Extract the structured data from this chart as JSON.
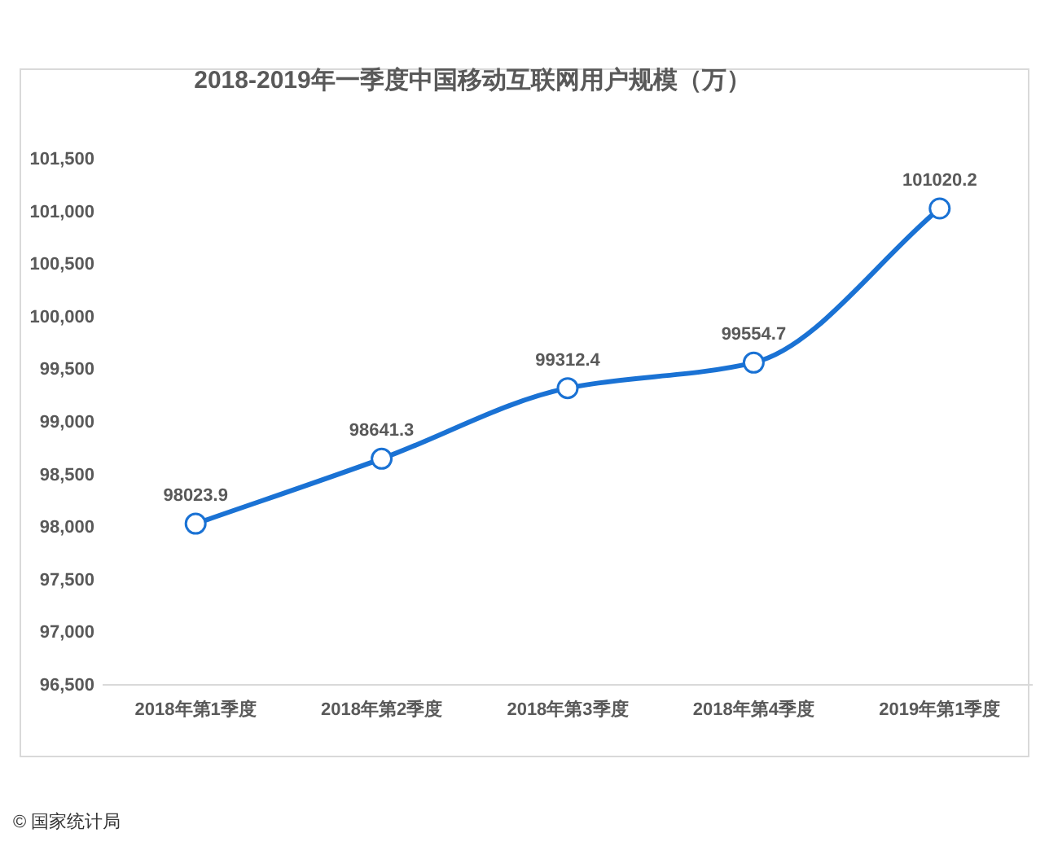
{
  "chart_data": {
    "type": "line",
    "title": "2018-2019年一季度中国移动互联网用户规模（万）",
    "categories": [
      "2018年第1季度",
      "2018年第2季度",
      "2018年第3季度",
      "2018年第4季度",
      "2019年第1季度"
    ],
    "series": [
      {
        "color": "#1a72d4",
        "values": [
          98023.9,
          98641.3,
          99312.4,
          99554.7,
          101020.2
        ]
      }
    ],
    "ylim": [
      96500,
      101500
    ],
    "yticks": [
      {
        "value": 96500,
        "label": "96,500"
      },
      {
        "value": 97000,
        "label": "97,000"
      },
      {
        "value": 97500,
        "label": "97,500"
      },
      {
        "value": 98000,
        "label": "98,000"
      },
      {
        "value": 98500,
        "label": "98,500"
      },
      {
        "value": 99000,
        "label": "99,000"
      },
      {
        "value": 99500,
        "label": "99,500"
      },
      {
        "value": 100000,
        "label": "100,000"
      },
      {
        "value": 100500,
        "label": "100,500"
      },
      {
        "value": 101000,
        "label": "101,000"
      },
      {
        "value": 101500,
        "label": "101,500"
      }
    ],
    "data_labels": true,
    "marker": "circle",
    "grid": false,
    "annotations": [
      "© 国家统计局"
    ]
  }
}
